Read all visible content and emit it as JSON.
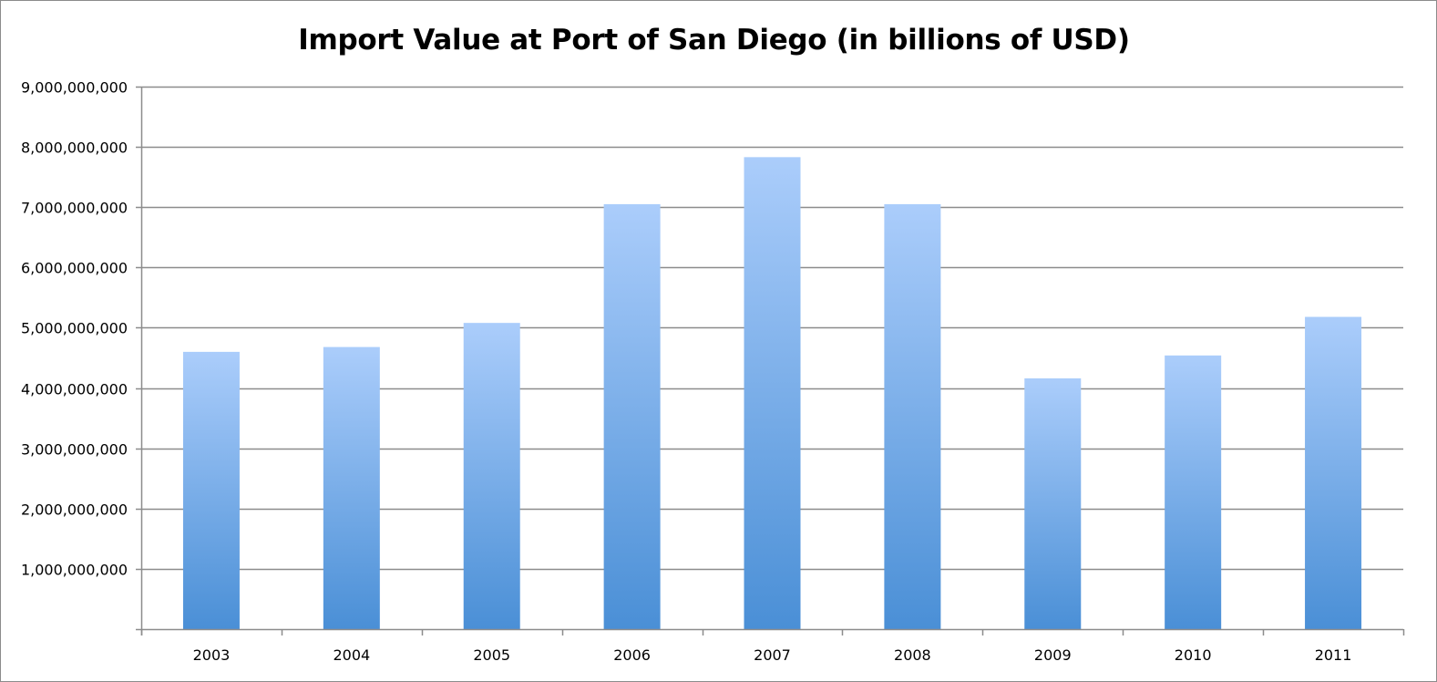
{
  "chart_data": {
    "type": "bar",
    "title": "Import Value at Port of San Diego (in billions of USD)",
    "xlabel": "",
    "ylabel": "",
    "categories": [
      "2003",
      "2004",
      "2005",
      "2006",
      "2007",
      "2008",
      "2009",
      "2010",
      "2011"
    ],
    "values": [
      4600000000,
      4680000000,
      5080000000,
      7050000000,
      7830000000,
      7050000000,
      4160000000,
      4540000000,
      5180000000
    ],
    "ylim": [
      0,
      9000000000
    ],
    "yticks": [
      1000000000,
      2000000000,
      3000000000,
      4000000000,
      5000000000,
      6000000000,
      7000000000,
      8000000000,
      9000000000
    ],
    "ytick_labels": [
      "1,000,000,000",
      "2,000,000,000",
      "3,000,000,000",
      "4,000,000,000",
      "5,000,000,000",
      "6,000,000,000",
      "7,000,000,000",
      "8,000,000,000",
      "9,000,000,000"
    ],
    "grid": true,
    "legend": "none",
    "colors": {
      "bar_top": "#abcdfb",
      "bar_bottom": "#4a8fd6",
      "grid": "#8c8c8c",
      "axis": "#8c8c8c"
    }
  }
}
